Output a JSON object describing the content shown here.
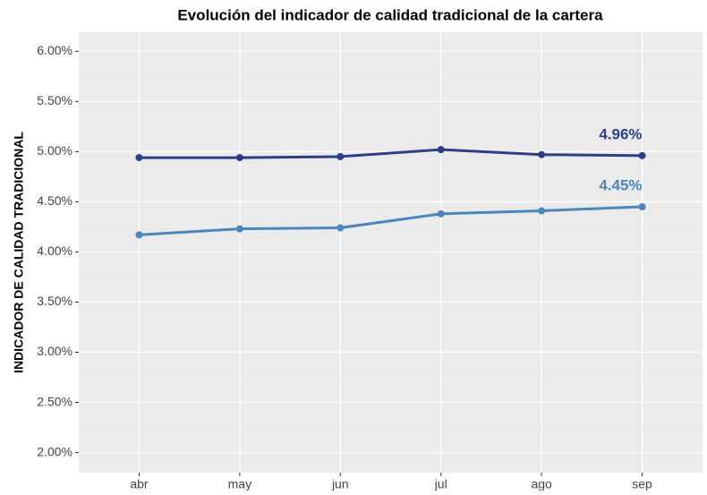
{
  "chart_data": {
    "type": "line",
    "title": "Evolución del indicador de calidad tradicional de la cartera",
    "y_label": "INDICADOR DE CALIDAD TRADICIONAL",
    "categories": [
      "abr",
      "may",
      "jun",
      "jul",
      "ago",
      "sep"
    ],
    "series": [
      {
        "color": "#2b3f8c",
        "values": [
          4.94,
          4.94,
          4.95,
          5.02,
          4.97,
          4.96
        ],
        "value_labels": [
          null,
          null,
          null,
          null,
          null,
          "4.96%"
        ]
      },
      {
        "color": "#4a86bf",
        "values": [
          4.17,
          4.23,
          4.24,
          4.38,
          4.41,
          4.45
        ],
        "value_labels": [
          null,
          null,
          null,
          null,
          null,
          "4.45%"
        ]
      }
    ],
    "ylim": [
      1.8,
      6.19
    ],
    "yticks": [
      {
        "value": 2.0,
        "label": "2.00%"
      },
      {
        "value": 2.5,
        "label": "2.50%"
      },
      {
        "value": 3.0,
        "label": "3.00%"
      },
      {
        "value": 3.5,
        "label": "3.50%"
      },
      {
        "value": 4.0,
        "label": "4.00%"
      },
      {
        "value": 4.5,
        "label": "4.50%"
      },
      {
        "value": 5.0,
        "label": "5.00%"
      },
      {
        "value": 5.5,
        "label": "5.50%"
      },
      {
        "value": 6.0,
        "label": "6.00%"
      }
    ],
    "grid": true
  }
}
